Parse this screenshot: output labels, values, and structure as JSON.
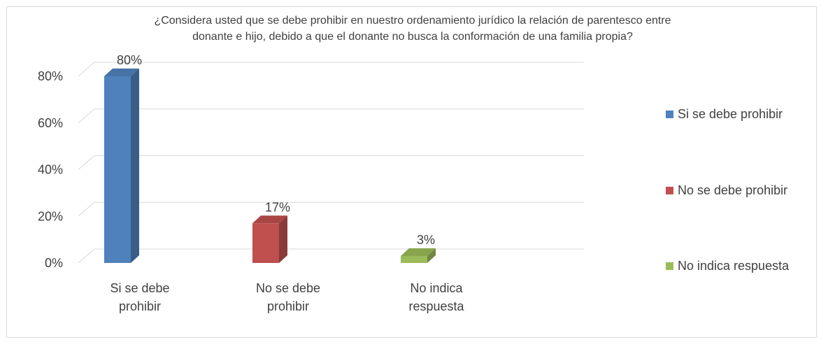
{
  "chart_data": {
    "type": "bar",
    "title": "¿Considera usted que se debe prohibir en nuestro ordenamiento jurídico la relación de parentesco entre donante e hijo, debido a que el donante no busca la conformación de una familia propia?",
    "title_lines": [
      "¿Considera usted que se debe prohibir en nuestro ordenamiento jurídico la relación de parentesco entre",
      "donante e hijo, debido a que el donante no busca la conformación de una familia propia?"
    ],
    "categories": [
      "Si se debe prohibir",
      "No se debe prohibir",
      "No indica respuesta"
    ],
    "category_label_lines": [
      [
        "Si se debe",
        "prohibir"
      ],
      [
        "No se debe",
        "prohibir"
      ],
      [
        "No indica",
        "respuesta"
      ]
    ],
    "values": [
      80,
      17,
      3
    ],
    "data_labels": [
      "80%",
      "17%",
      "3%"
    ],
    "colors": [
      "#4f81bd",
      "#c0504d",
      "#9bbb59"
    ],
    "ylim": [
      0,
      80
    ],
    "yticks": [
      0,
      20,
      40,
      60,
      80
    ],
    "ytick_labels": [
      "0%",
      "20%",
      "40%",
      "60%",
      "80%"
    ],
    "grid": true,
    "style": "3d-column",
    "legend": {
      "position": "right",
      "entries": [
        "Si se debe prohibir",
        "No se debe prohibir",
        "No indica respuesta"
      ]
    },
    "xlabel": "",
    "ylabel": ""
  }
}
